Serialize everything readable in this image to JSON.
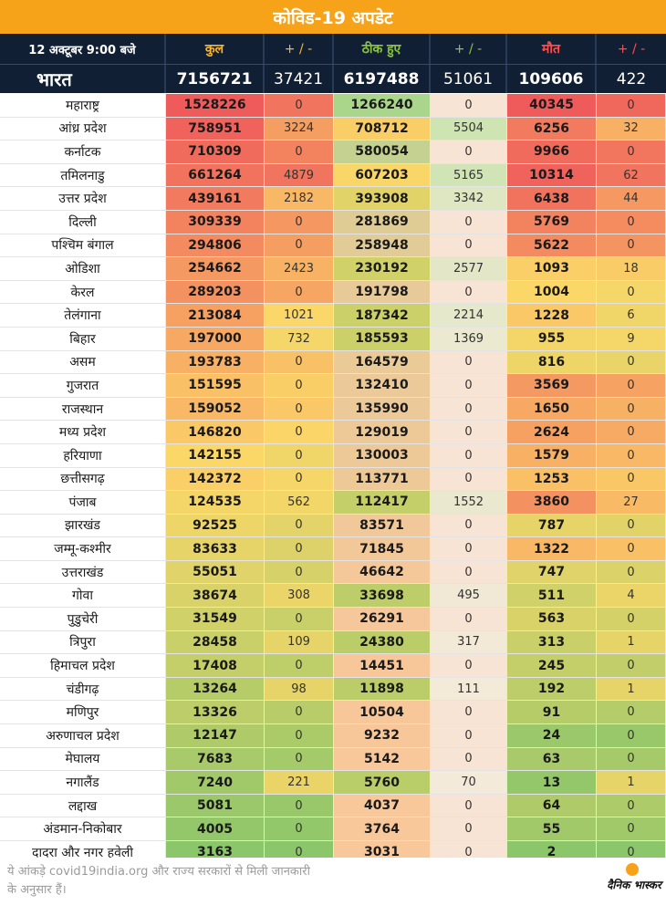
{
  "title": "कोविड-19 अपडेट",
  "header": {
    "date": "12 अक्टूबर 9:00 बजे",
    "total": "कुल",
    "total_delta": "+ / -",
    "recovered": "ठीक हुए",
    "recovered_delta": "+ / -",
    "deaths": "मौत",
    "deaths_delta": "+ / -"
  },
  "national": {
    "name": "भारत",
    "total": "7156721",
    "total_delta": "37421",
    "recovered": "6197488",
    "recovered_delta": "51061",
    "deaths": "109606",
    "deaths_delta": "422"
  },
  "states": [
    {
      "name": "महाराष्ट्र",
      "total": "1528226",
      "td": "0",
      "rec": "1266240",
      "rd": "0",
      "deaths": "40345",
      "dd": "0"
    },
    {
      "name": "आंध्र प्रदेश",
      "total": "758951",
      "td": "3224",
      "rec": "708712",
      "rd": "5504",
      "deaths": "6256",
      "dd": "32"
    },
    {
      "name": "कर्नाटक",
      "total": "710309",
      "td": "0",
      "rec": "580054",
      "rd": "0",
      "deaths": "9966",
      "dd": "0"
    },
    {
      "name": "तमिलनाडु",
      "total": "661264",
      "td": "4879",
      "rec": "607203",
      "rd": "5165",
      "deaths": "10314",
      "dd": "62"
    },
    {
      "name": "उत्तर प्रदेश",
      "total": "439161",
      "td": "2182",
      "rec": "393908",
      "rd": "3342",
      "deaths": "6438",
      "dd": "44"
    },
    {
      "name": "दिल्ली",
      "total": "309339",
      "td": "0",
      "rec": "281869",
      "rd": "0",
      "deaths": "5769",
      "dd": "0"
    },
    {
      "name": "पश्चिम बंगाल",
      "total": "294806",
      "td": "0",
      "rec": "258948",
      "rd": "0",
      "deaths": "5622",
      "dd": "0"
    },
    {
      "name": "ओडिशा",
      "total": "254662",
      "td": "2423",
      "rec": "230192",
      "rd": "2577",
      "deaths": "1093",
      "dd": "18"
    },
    {
      "name": "केरल",
      "total": "289203",
      "td": "0",
      "rec": "191798",
      "rd": "0",
      "deaths": "1004",
      "dd": "0"
    },
    {
      "name": "तेलंगाना",
      "total": "213084",
      "td": "1021",
      "rec": "187342",
      "rd": "2214",
      "deaths": "1228",
      "dd": "6"
    },
    {
      "name": "बिहार",
      "total": "197000",
      "td": "732",
      "rec": "185593",
      "rd": "1369",
      "deaths": "955",
      "dd": "9"
    },
    {
      "name": "असम",
      "total": "193783",
      "td": "0",
      "rec": "164579",
      "rd": "0",
      "deaths": "816",
      "dd": "0"
    },
    {
      "name": "गुजरात",
      "total": "151595",
      "td": "0",
      "rec": "132410",
      "rd": "0",
      "deaths": "3569",
      "dd": "0"
    },
    {
      "name": "राजस्थान",
      "total": "159052",
      "td": "0",
      "rec": "135990",
      "rd": "0",
      "deaths": "1650",
      "dd": "0"
    },
    {
      "name": "मध्य प्रदेश",
      "total": "146820",
      "td": "0",
      "rec": "129019",
      "rd": "0",
      "deaths": "2624",
      "dd": "0"
    },
    {
      "name": "हरियाणा",
      "total": "142155",
      "td": "0",
      "rec": "130003",
      "rd": "0",
      "deaths": "1579",
      "dd": "0"
    },
    {
      "name": "छत्तीसगढ़",
      "total": "142372",
      "td": "0",
      "rec": "113771",
      "rd": "0",
      "deaths": "1253",
      "dd": "0"
    },
    {
      "name": "पंजाब",
      "total": "124535",
      "td": "562",
      "rec": "112417",
      "rd": "1552",
      "deaths": "3860",
      "dd": "27"
    },
    {
      "name": "झारखंड",
      "total": "92525",
      "td": "0",
      "rec": "83571",
      "rd": "0",
      "deaths": "787",
      "dd": "0"
    },
    {
      "name": "जम्मू-कश्मीर",
      "total": "83633",
      "td": "0",
      "rec": "71845",
      "rd": "0",
      "deaths": "1322",
      "dd": "0"
    },
    {
      "name": "उत्तराखंड",
      "total": "55051",
      "td": "0",
      "rec": "46642",
      "rd": "0",
      "deaths": "747",
      "dd": "0"
    },
    {
      "name": "गोवा",
      "total": "38674",
      "td": "308",
      "rec": "33698",
      "rd": "495",
      "deaths": "511",
      "dd": "4"
    },
    {
      "name": "पुडुचेरी",
      "total": "31549",
      "td": "0",
      "rec": "26291",
      "rd": "0",
      "deaths": "563",
      "dd": "0"
    },
    {
      "name": "त्रिपुरा",
      "total": "28458",
      "td": "109",
      "rec": "24380",
      "rd": "317",
      "deaths": "313",
      "dd": "1"
    },
    {
      "name": "हिमाचल प्रदेश",
      "total": "17408",
      "td": "0",
      "rec": "14451",
      "rd": "0",
      "deaths": "245",
      "dd": "0"
    },
    {
      "name": "चंडीगढ़",
      "total": "13264",
      "td": "98",
      "rec": "11898",
      "rd": "111",
      "deaths": "192",
      "dd": "1"
    },
    {
      "name": "मणिपुर",
      "total": "13326",
      "td": "0",
      "rec": "10504",
      "rd": "0",
      "deaths": "91",
      "dd": "0"
    },
    {
      "name": "अरुणाचल प्रदेश",
      "total": "12147",
      "td": "0",
      "rec": "9232",
      "rd": "0",
      "deaths": "24",
      "dd": "0"
    },
    {
      "name": "मेघालय",
      "total": "7683",
      "td": "0",
      "rec": "5142",
      "rd": "0",
      "deaths": "63",
      "dd": "0"
    },
    {
      "name": "नगालैंड",
      "total": "7240",
      "td": "221",
      "rec": "5760",
      "rd": "70",
      "deaths": "13",
      "dd": "1"
    },
    {
      "name": "लद्दाख",
      "total": "5081",
      "td": "0",
      "rec": "4037",
      "rd": "0",
      "deaths": "64",
      "dd": "0"
    },
    {
      "name": "अंडमान-निकोबार",
      "total": "4005",
      "td": "0",
      "rec": "3764",
      "rd": "0",
      "deaths": "55",
      "dd": "0"
    },
    {
      "name": "दादरा और नगर हवेली",
      "total": "3163",
      "td": "0",
      "rec": "3031",
      "rd": "0",
      "deaths": "2",
      "dd": "0"
    }
  ],
  "colors": {
    "title_bg": "#f7a31a",
    "header_bg": "#111f34",
    "scale_low": "#8cc66a",
    "scale_mid": "#fbd768",
    "scale_high": "#ef5b5b",
    "rec_zero": "#f8e4d4",
    "rec_mid_a": "#f7c89a",
    "rec_high": "#a7d68a"
  },
  "footer": {
    "note": "ये आंकड़े covid19india.org और राज्य सरकारों से मिली जानकारी के अनुसार हैं।",
    "brand": "दैनिक भास्कर",
    "brand_icon": "sun-dot-icon"
  }
}
